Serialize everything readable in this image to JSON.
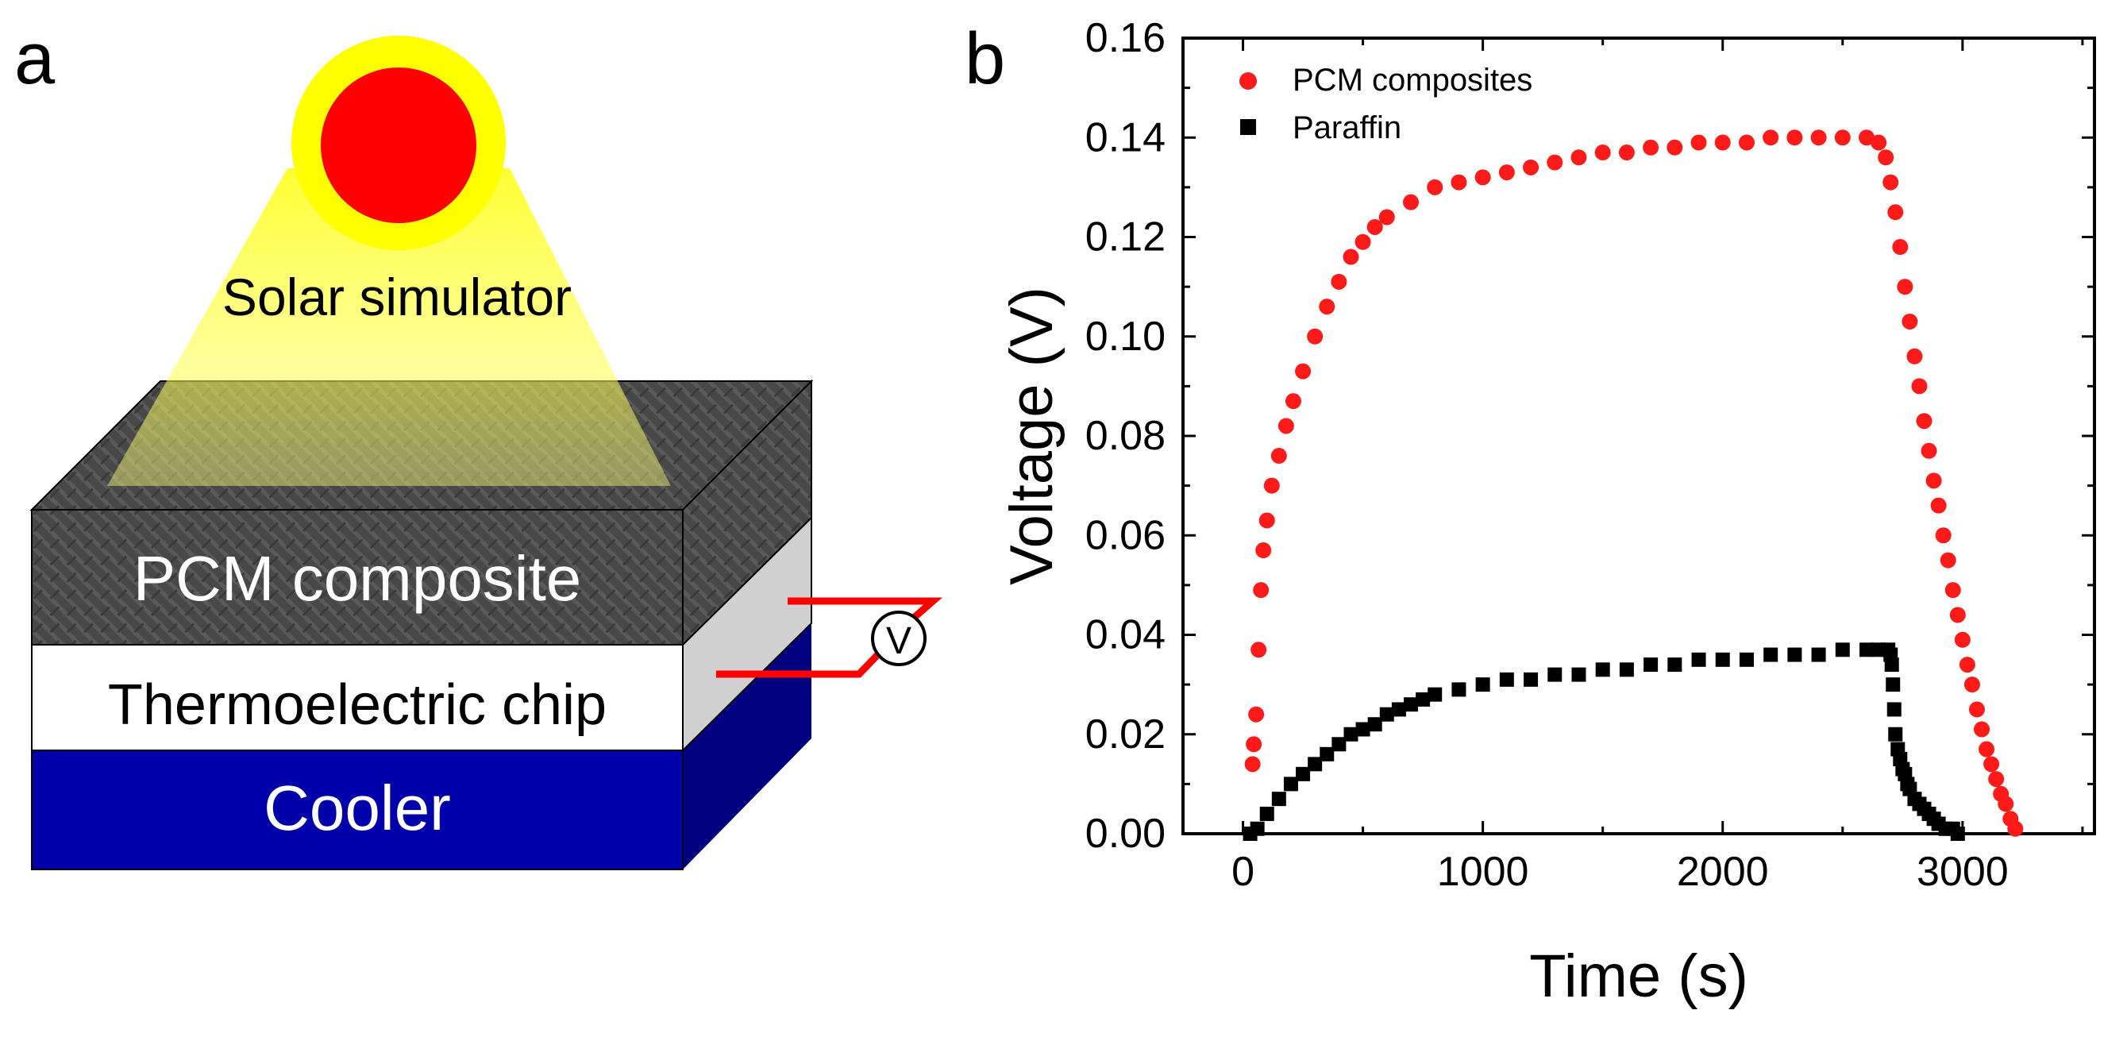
{
  "panel_a": {
    "label": "a",
    "solar_label": "Solar simulator",
    "pcm_label": "PCM composite",
    "te_label": "Thermoelectric chip",
    "cooler_label": "Cooler",
    "voltmeter_label": "V"
  },
  "panel_b": {
    "label": "b"
  },
  "colors": {
    "pcm_series": "#ff1a1a",
    "paraffin_series": "#000000",
    "sun_core": "#ff0000",
    "sun_halo": "#ffff00",
    "cooler": "#0000aa",
    "block_dark": "#474747",
    "wire": "#ff0000"
  },
  "chart_data": {
    "type": "scatter",
    "title": "",
    "xlabel": "Time (s)",
    "ylabel": "Voltage (V)",
    "xlim": [
      -250,
      3550
    ],
    "ylim": [
      0,
      0.16
    ],
    "xticks": [
      0,
      1000,
      2000,
      3000
    ],
    "xtick_labels": [
      "0",
      "1000",
      "2000",
      "3000"
    ],
    "yticks": [
      0,
      0.02,
      0.04,
      0.06,
      0.08,
      0.1,
      0.12,
      0.14,
      0.16
    ],
    "ytick_labels": [
      "0.00",
      "0.02",
      "0.04",
      "0.06",
      "0.08",
      "0.10",
      "0.12",
      "0.14",
      "0.16"
    ],
    "legend_position": "top-left",
    "series": [
      {
        "name": "PCM composites",
        "marker": "circle",
        "x": [
          40,
          45,
          55,
          65,
          75,
          85,
          100,
          120,
          150,
          180,
          210,
          250,
          300,
          350,
          400,
          450,
          500,
          550,
          600,
          700,
          800,
          900,
          1000,
          1100,
          1200,
          1300,
          1400,
          1500,
          1600,
          1700,
          1800,
          1900,
          2000,
          2100,
          2200,
          2300,
          2400,
          2500,
          2600,
          2650,
          2680,
          2700,
          2720,
          2740,
          2760,
          2780,
          2800,
          2820,
          2840,
          2860,
          2880,
          2900,
          2920,
          2940,
          2960,
          2980,
          3000,
          3020,
          3040,
          3060,
          3080,
          3100,
          3120,
          3140,
          3160,
          3180,
          3200,
          3220
        ],
        "y": [
          0.014,
          0.018,
          0.024,
          0.037,
          0.049,
          0.057,
          0.063,
          0.07,
          0.076,
          0.082,
          0.087,
          0.093,
          0.1,
          0.106,
          0.111,
          0.116,
          0.119,
          0.122,
          0.124,
          0.127,
          0.13,
          0.131,
          0.132,
          0.133,
          0.134,
          0.135,
          0.136,
          0.137,
          0.137,
          0.138,
          0.138,
          0.139,
          0.139,
          0.139,
          0.14,
          0.14,
          0.14,
          0.14,
          0.14,
          0.139,
          0.136,
          0.131,
          0.125,
          0.118,
          0.11,
          0.103,
          0.096,
          0.09,
          0.083,
          0.077,
          0.071,
          0.066,
          0.06,
          0.055,
          0.049,
          0.044,
          0.039,
          0.034,
          0.03,
          0.025,
          0.021,
          0.017,
          0.014,
          0.011,
          0.008,
          0.006,
          0.003,
          0.001
        ]
      },
      {
        "name": "Paraffin",
        "marker": "square",
        "x": [
          30,
          60,
          100,
          150,
          200,
          250,
          300,
          350,
          400,
          450,
          500,
          550,
          600,
          650,
          700,
          750,
          800,
          900,
          1000,
          1100,
          1200,
          1300,
          1400,
          1500,
          1600,
          1700,
          1800,
          1900,
          2000,
          2100,
          2200,
          2300,
          2400,
          2500,
          2600,
          2650,
          2690,
          2700,
          2705,
          2710,
          2715,
          2720,
          2730,
          2740,
          2750,
          2760,
          2770,
          2780,
          2800,
          2820,
          2840,
          2860,
          2880,
          2900,
          2930,
          2960,
          2980
        ],
        "y": [
          0.0,
          0.001,
          0.004,
          0.007,
          0.01,
          0.012,
          0.014,
          0.016,
          0.018,
          0.02,
          0.021,
          0.022,
          0.024,
          0.025,
          0.026,
          0.027,
          0.028,
          0.029,
          0.03,
          0.031,
          0.031,
          0.032,
          0.032,
          0.033,
          0.033,
          0.034,
          0.034,
          0.035,
          0.035,
          0.035,
          0.036,
          0.036,
          0.036,
          0.037,
          0.037,
          0.037,
          0.037,
          0.036,
          0.034,
          0.03,
          0.025,
          0.02,
          0.017,
          0.015,
          0.013,
          0.012,
          0.01,
          0.009,
          0.007,
          0.006,
          0.005,
          0.004,
          0.003,
          0.002,
          0.001,
          0.001,
          0.0
        ]
      }
    ]
  }
}
